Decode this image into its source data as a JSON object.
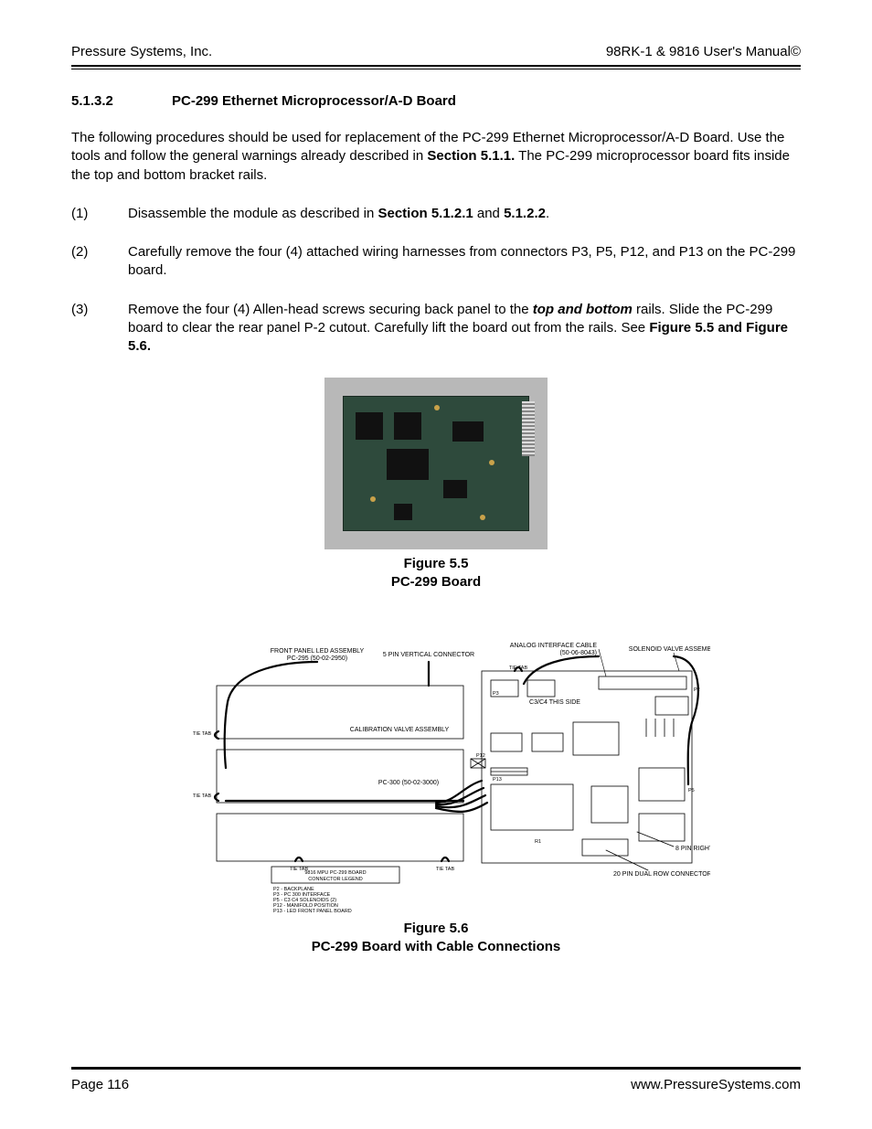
{
  "header": {
    "left": "Pressure Systems, Inc.",
    "right": "98RK-1 & 9816 User's Manual©"
  },
  "section": {
    "number": "5.1.3.2",
    "title": "PC-299 Ethernet Microprocessor/A-D Board"
  },
  "intro": {
    "part1": "The following procedures should be used for replacement of the PC-299 Ethernet Microprocessor/A-D Board.  Use the tools and follow the general warnings already described in ",
    "bold": "Section 5.1.1.",
    "part2": " The PC-299 microprocessor board fits inside the top and bottom bracket rails."
  },
  "steps": [
    {
      "num": "(1)",
      "runs": [
        {
          "t": "Disassemble the module as described in "
        },
        {
          "t": "Section 5.1.2.1",
          "b": true
        },
        {
          "t": " and "
        },
        {
          "t": "5.1.2.2",
          "b": true
        },
        {
          "t": "."
        }
      ]
    },
    {
      "num": "(2)",
      "runs": [
        {
          "t": "Carefully remove the four (4) attached wiring harnesses from connectors P3, P5, P12, and P13 on the PC-299 board."
        }
      ]
    },
    {
      "num": "(3)",
      "runs": [
        {
          "t": "Remove the four (4) Allen-head screws securing back panel to the "
        },
        {
          "t": "top and bottom",
          "bi": true
        },
        {
          "t": " rails.  Slide the PC-299 board to clear the rear panel P-2 cutout.  Carefully lift the board out from the rails.  See "
        },
        {
          "t": "Figure 5.5 and Figure 5.6.",
          "b": true
        }
      ]
    }
  ],
  "figure55": {
    "line1": "Figure 5.5",
    "line2": "PC-299 Board"
  },
  "figure56": {
    "line1": "Figure 5.6",
    "line2": "PC-299 Board with Cable Connections",
    "labels": {
      "front_panel1": "FRONT PANEL LED ASSEMBLY",
      "front_panel2": "PC-295 (50-02-2950)",
      "five_pin": "5 PIN VERTICAL CONNECTOR",
      "analog1": "ANALOG INTERFACE CABLE",
      "analog2": "(50-06-8043)",
      "solenoid": "SOLENOID VALVE ASSEMBLY",
      "tie_tab": "TIE TAB",
      "c3c4": "C3/C4 THIS SIDE",
      "cal_valve": "CALIBRATION VALVE ASSEMBLY",
      "pc300": "PC-300 (50-02-3000)",
      "eight_pin": "8 PIN RIGHT ANGLE LOCKING CONNECTOR",
      "twenty_pin": "20 PIN DUAL ROW CONNECTOR",
      "legend_title1": "9816 MPU PC-299 BOARD",
      "legend_title2": "CONNECTOR LEGEND",
      "legend_l1": "P2 - BACKPLANE",
      "legend_l2": "P3 - PC 300 INTERFACE",
      "legend_l3": "P5 - C3 C4 SOLENOIDS (2)",
      "legend_l4": "P12 - MANIFOLD POSITION",
      "legend_l5": "P13 - LED FRONT PANEL BOARD",
      "p3": "P3",
      "p5": "P5",
      "p12": "P12",
      "p13": "P13",
      "p2": "P2",
      "r1": "R1"
    }
  },
  "footer": {
    "left": "Page 116",
    "right": "www.PressureSystems.com"
  }
}
